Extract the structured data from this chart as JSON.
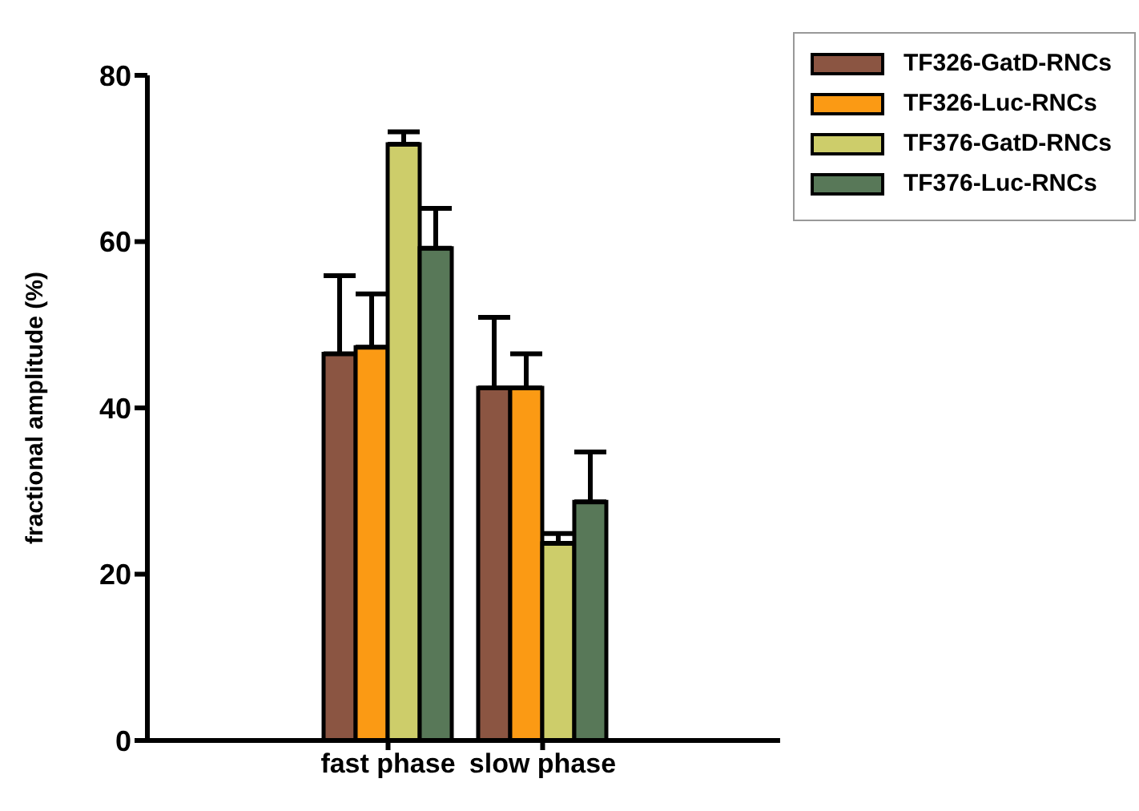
{
  "chart_data": {
    "type": "bar",
    "ylabel": "fractional amplitude (%)",
    "categories": [
      "fast phase",
      "slow phase"
    ],
    "series": [
      {
        "name": "TF326-GatD-RNCs",
        "color": "#8b5542",
        "values": [
          46.5,
          42.4
        ],
        "errors": [
          9.4,
          8.5
        ]
      },
      {
        "name": "TF326-Luc-RNCs",
        "color": "#fb9a14",
        "values": [
          47.3,
          42.4
        ],
        "errors": [
          6.4,
          4.1
        ]
      },
      {
        "name": "TF376-GatD-RNCs",
        "color": "#cdcd6a",
        "values": [
          71.7,
          23.7
        ],
        "errors": [
          1.5,
          1.2
        ]
      },
      {
        "name": "TF376-Luc-RNCs",
        "color": "#587858",
        "values": [
          59.2,
          28.7
        ],
        "errors": [
          4.8,
          6.0
        ]
      }
    ],
    "ylim": [
      0,
      80
    ],
    "yticks": [
      0,
      20,
      40,
      60,
      80
    ],
    "grid": false,
    "legend": "top right"
  }
}
